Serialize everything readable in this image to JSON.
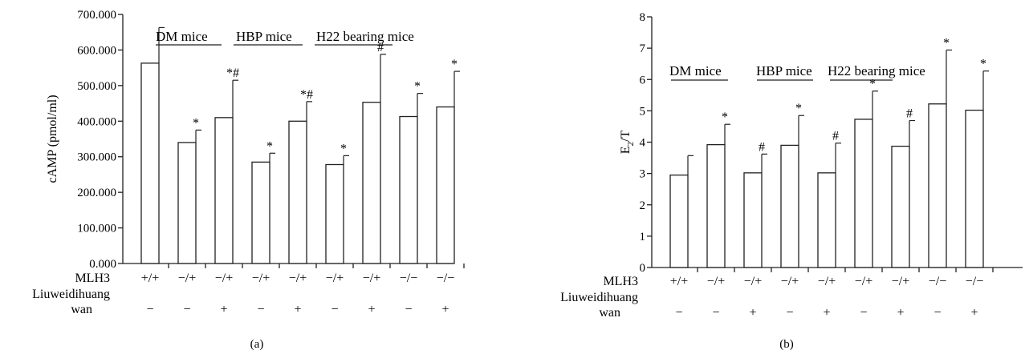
{
  "colors": {
    "ink": "#231f20",
    "background": "#ffffff"
  },
  "chart_data": [
    {
      "type": "bar",
      "panel_label": "(a)",
      "ylabel": "cAMP (pmol/ml)",
      "ylim": [
        0,
        700
      ],
      "yticks": [
        0,
        100,
        200,
        300,
        400,
        500,
        600,
        700
      ],
      "ytick_labels": [
        "0.000",
        "100.000",
        "200.000",
        "300.000",
        "400.000",
        "500.000",
        "600.000",
        "700.000"
      ],
      "grid": false,
      "values": [
        563,
        340,
        410,
        285,
        400,
        278,
        453,
        413,
        440
      ],
      "errors": [
        100,
        35,
        105,
        25,
        55,
        25,
        135,
        65,
        100
      ],
      "markers": [
        "",
        "*",
        "*#",
        "*",
        "*#",
        "*",
        "#",
        "*",
        "*"
      ],
      "groups": [
        "DM mice",
        "HBP mice",
        "H22 bearing mice"
      ],
      "row_labels": [
        "MLH3",
        "Liuweidihuang",
        "wan"
      ],
      "mlh3": [
        "+/+",
        "−/+",
        "−/+",
        "−/+",
        "−/+",
        "−/+",
        "−/+",
        "−/−",
        "−/−"
      ],
      "liuweidihuang": [
        "−",
        "−",
        "+",
        "−",
        "+",
        "−",
        "+",
        "−",
        "+"
      ]
    },
    {
      "type": "bar",
      "panel_label": "(b)",
      "ylabel_main": "E",
      "ylabel_sub": "2",
      "ylabel_tail": "/T",
      "ylim": [
        0,
        8
      ],
      "yticks": [
        0,
        1,
        2,
        3,
        4,
        5,
        6,
        7,
        8
      ],
      "ytick_labels": [
        "0",
        "1",
        "2",
        "3",
        "4",
        "5",
        "6",
        "7",
        "8"
      ],
      "grid": false,
      "values": [
        2.95,
        3.92,
        3.02,
        3.9,
        3.02,
        4.73,
        3.87,
        5.22,
        5.02
      ],
      "errors": [
        0.62,
        0.65,
        0.6,
        0.95,
        0.95,
        0.9,
        0.82,
        1.72,
        1.25
      ],
      "markers": [
        "",
        "*",
        "#",
        "*",
        "#",
        "*",
        "#",
        "*",
        "*"
      ],
      "groups": [
        "DM mice",
        "HBP mice",
        "H22 bearing mice"
      ],
      "row_labels": [
        "MLH3",
        "Liuweidihuang",
        "wan"
      ],
      "mlh3": [
        "+/+",
        "−/+",
        "−/+",
        "−/+",
        "−/+",
        "−/+",
        "−/+",
        "−/−",
        "−/−"
      ],
      "liuweidihuang": [
        "−",
        "−",
        "+",
        "−",
        "+",
        "−",
        "+",
        "−",
        "+"
      ]
    }
  ]
}
